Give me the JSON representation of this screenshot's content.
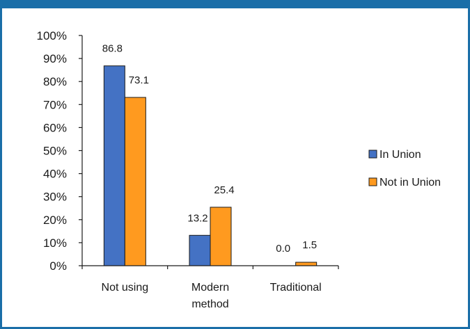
{
  "header": {
    "title": ""
  },
  "chart_data": {
    "type": "bar",
    "title": "",
    "xlabel": "",
    "ylabel": "",
    "ylim": [
      0,
      100
    ],
    "yticks": [
      "0%",
      "10%",
      "20%",
      "30%",
      "40%",
      "50%",
      "60%",
      "70%",
      "80%",
      "90%",
      "100%"
    ],
    "categories": [
      [
        "Not using"
      ],
      [
        "Modern",
        "method"
      ],
      [
        "Traditional"
      ]
    ],
    "series": [
      {
        "name": "In Union",
        "color": "#4472c4",
        "values": [
          86.8,
          13.2,
          0.0
        ],
        "labels": [
          "86.8",
          "13.2",
          "0.0"
        ]
      },
      {
        "name": "Not in Union",
        "color": "#ff9a1f",
        "values": [
          73.1,
          25.4,
          1.5
        ],
        "labels": [
          "73.1",
          "25.4",
          "1.5"
        ]
      }
    ],
    "legend": "right",
    "grid": false
  }
}
